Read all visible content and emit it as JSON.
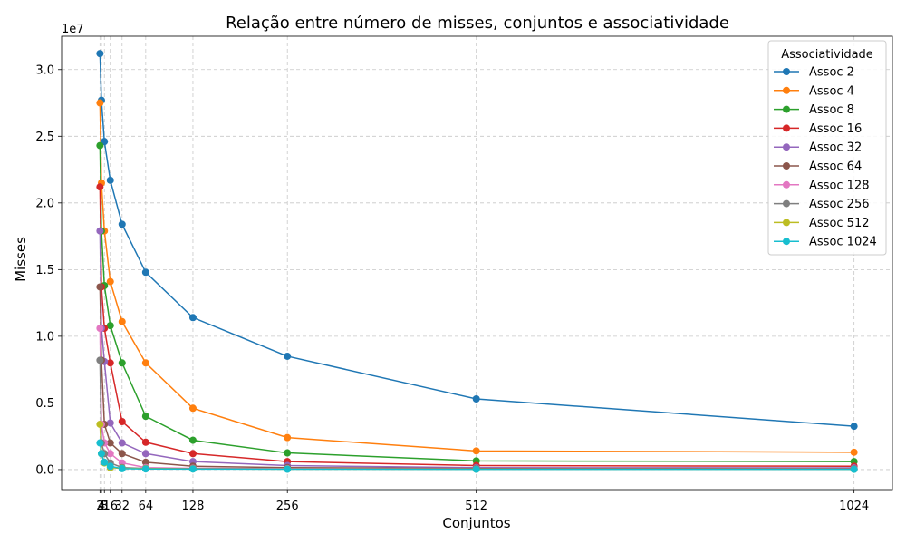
{
  "chart_data": {
    "type": "line",
    "title": "Relação entre número de misses, conjuntos e associatividade",
    "xlabel": "Conjuntos",
    "ylabel": "Misses",
    "y_offset_label": "1e7",
    "x_ticks": [
      2,
      4,
      8,
      16,
      32,
      64,
      128,
      256,
      512,
      1024
    ],
    "x_tick_labels": [
      "2",
      "4",
      "8",
      "16",
      "32",
      "64",
      "128",
      "256",
      "512",
      "1024"
    ],
    "x_range": [
      -50,
      1076
    ],
    "y_ticks": [
      0,
      5000000,
      10000000,
      15000000,
      20000000,
      25000000,
      30000000
    ],
    "y_tick_labels": [
      "0.0",
      "0.5",
      "1.0",
      "1.5",
      "2.0",
      "2.5",
      "3.0"
    ],
    "ylim": [
      -1500000,
      32500000
    ],
    "grid": true,
    "legend_title": "Associatividade",
    "legend_position": "upper right",
    "x": [
      2,
      4,
      8,
      16,
      32,
      64,
      128,
      256,
      512,
      1024
    ],
    "series": [
      {
        "name": "Assoc 2",
        "color": "#1f77b4",
        "values": [
          31200000,
          27700000,
          24600000,
          21700000,
          18400000,
          14800000,
          11400000,
          8500000,
          5300000,
          3250000
        ]
      },
      {
        "name": "Assoc 4",
        "color": "#ff7f0e",
        "values": [
          27500000,
          21500000,
          17900000,
          14100000,
          11100000,
          8000000,
          4600000,
          2400000,
          1400000,
          1300000
        ]
      },
      {
        "name": "Assoc 8",
        "color": "#2ca02c",
        "values": [
          24300000,
          17900000,
          13800000,
          10800000,
          8000000,
          4000000,
          2200000,
          1250000,
          650000,
          600000
        ]
      },
      {
        "name": "Assoc 16",
        "color": "#d62728",
        "values": [
          21200000,
          13700000,
          10600000,
          8000000,
          3600000,
          2050000,
          1200000,
          600000,
          300000,
          250000
        ]
      },
      {
        "name": "Assoc 32",
        "color": "#9467bd",
        "values": [
          17900000,
          10600000,
          8100000,
          3500000,
          2000000,
          1200000,
          600000,
          300000,
          150000,
          130000
        ]
      },
      {
        "name": "Assoc 64",
        "color": "#8c564b",
        "values": [
          13700000,
          8200000,
          3400000,
          2000000,
          1200000,
          550000,
          250000,
          150000,
          80000,
          60000
        ]
      },
      {
        "name": "Assoc 128",
        "color": "#e377c2",
        "values": [
          10600000,
          3400000,
          2000000,
          1200000,
          500000,
          150000,
          100000,
          70000,
          50000,
          40000
        ]
      },
      {
        "name": "Assoc 256",
        "color": "#7f7f7f",
        "values": [
          8200000,
          2000000,
          1200000,
          500000,
          150000,
          90000,
          70000,
          50000,
          40000,
          30000
        ]
      },
      {
        "name": "Assoc 512",
        "color": "#bcbd22",
        "values": [
          3400000,
          1200000,
          500000,
          150000,
          90000,
          70000,
          50000,
          40000,
          30000,
          25000
        ]
      },
      {
        "name": "Assoc 1024",
        "color": "#17becf",
        "values": [
          2000000,
          1200000,
          550000,
          250000,
          70000,
          50000,
          40000,
          30000,
          25000,
          20000
        ]
      }
    ]
  }
}
